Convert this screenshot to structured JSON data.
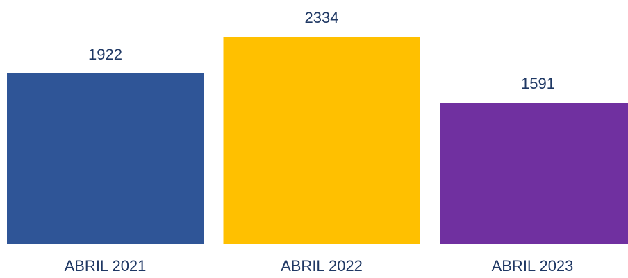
{
  "chart_data": {
    "type": "bar",
    "categories": [
      "ABRIL 2021",
      "ABRIL 2022",
      "ABRIL 2023"
    ],
    "values": [
      1922,
      2334,
      1591
    ],
    "colors": [
      "#2f5597",
      "#ffc000",
      "#7030a0"
    ]
  }
}
